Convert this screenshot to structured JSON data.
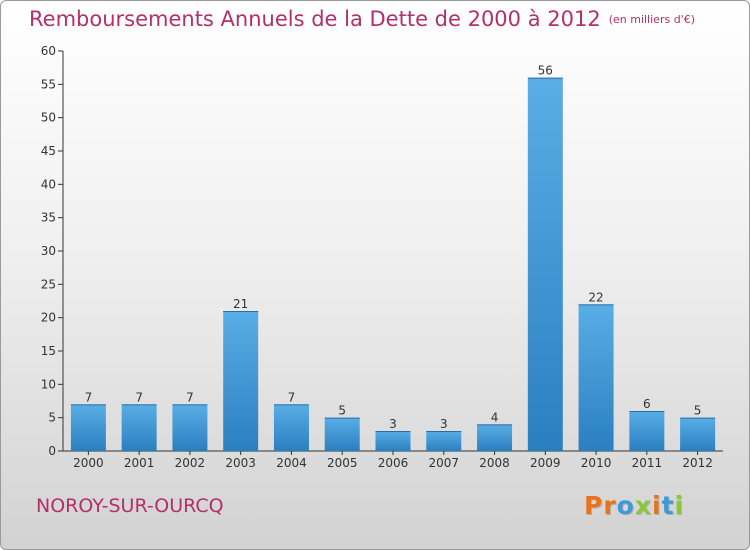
{
  "header": {
    "title": "Remboursements Annuels de la Dette de 2000 à 2012",
    "unit": "(en milliers d'€)"
  },
  "footer": {
    "city": "NOROY-SUR-OURCQ",
    "brand": "Proxiti",
    "brand_letters": [
      "P",
      "r",
      "o",
      "x",
      "i",
      "t",
      "i"
    ],
    "brand_colors": [
      "#e8731b",
      "#e8731b",
      "#3c9ad6",
      "#8cc63f",
      "#e8731b",
      "#3c9ad6",
      "#8cc63f"
    ]
  },
  "colors": {
    "title": "#b3306a",
    "bar_light": "#5aaee6",
    "bar_dark": "#2a7fc0",
    "axis": "#333333"
  },
  "chart_data": {
    "type": "bar",
    "title": "Remboursements Annuels de la Dette de 2000 à 2012",
    "subtitle": "(en milliers d'€)",
    "xlabel": "",
    "ylabel": "",
    "categories": [
      "2000",
      "2001",
      "2002",
      "2003",
      "2004",
      "2005",
      "2006",
      "2007",
      "2008",
      "2009",
      "2010",
      "2011",
      "2012"
    ],
    "values": [
      7,
      7,
      7,
      21,
      7,
      5,
      3,
      3,
      4,
      56,
      22,
      6,
      5
    ],
    "ylim": [
      0,
      60
    ],
    "yticks": [
      0,
      5,
      10,
      15,
      20,
      25,
      30,
      35,
      40,
      45,
      50,
      55,
      60
    ],
    "grid": false,
    "legend": "none"
  }
}
